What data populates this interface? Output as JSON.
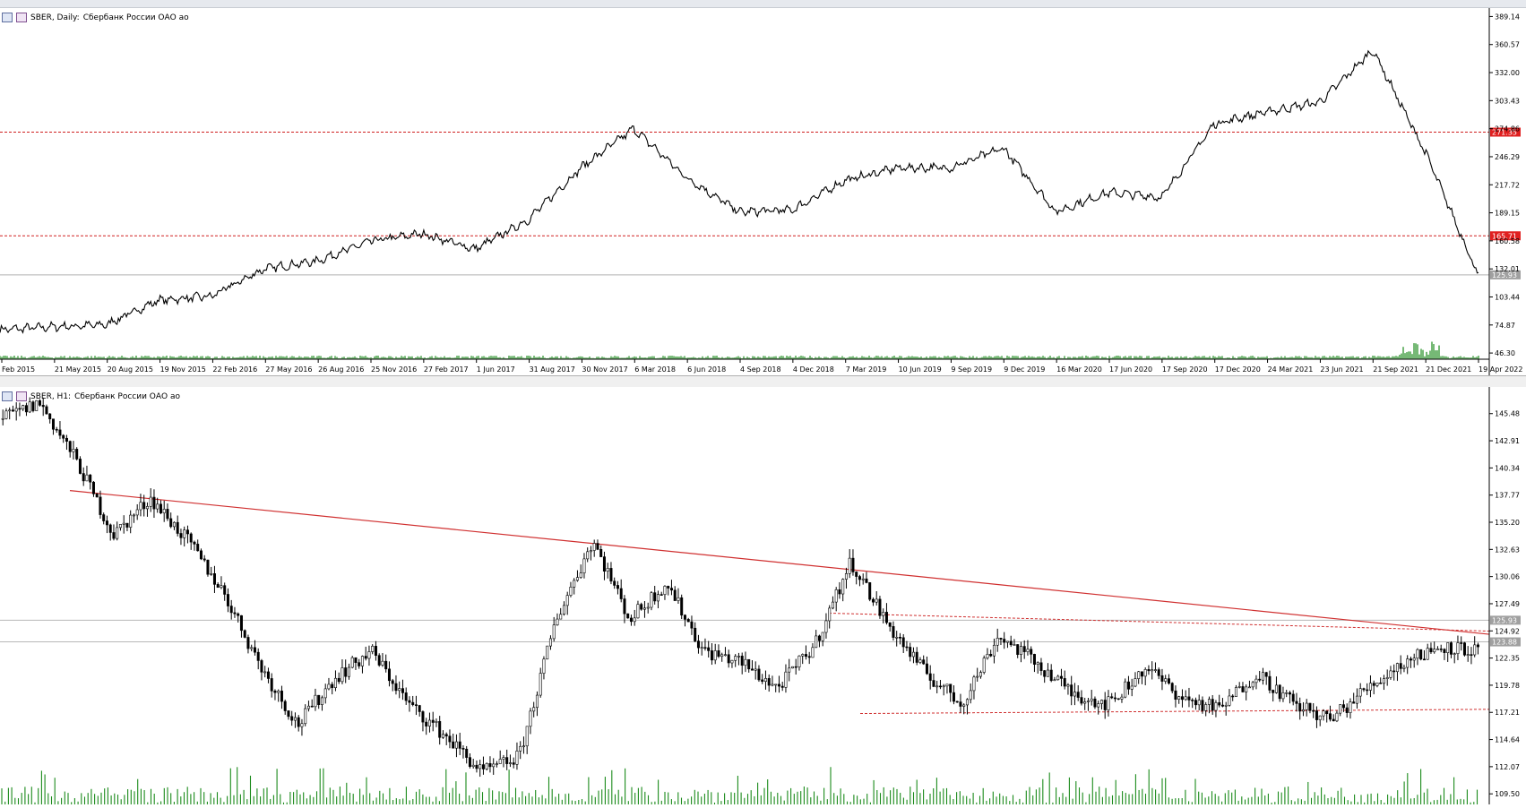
{
  "top_chart": {
    "header": {
      "symbol": "SBER, Daily:",
      "description": "Сбербанк России ОАО ао"
    },
    "price_axis": [
      "389.14",
      "360.57",
      "332.00",
      "303.43",
      "274.86",
      "246.29",
      "217.72",
      "189.15",
      "160.58",
      "132.01",
      "103.44",
      "74.87",
      "46.30"
    ],
    "time_axis": [
      "Feb 2015",
      "21 May 2015",
      "20 Aug 2015",
      "19 Nov 2015",
      "22 Feb 2016",
      "27 May 2016",
      "26 Aug 2016",
      "25 Nov 2016",
      "27 Feb 2017",
      "1 Jun 2017",
      "31 Aug 2017",
      "30 Nov 2017",
      "6 Mar 2018",
      "6 Jun 2018",
      "4 Sep 2018",
      "4 Dec 2018",
      "7 Mar 2019",
      "10 Jun 2019",
      "9 Sep 2019",
      "9 Dec 2019",
      "16 Mar 2020",
      "17 Jun 2020",
      "17 Sep 2020",
      "17 Dec 2020",
      "24 Mar 2021",
      "23 Jun 2021",
      "21 Sep 2021",
      "21 Dec 2021",
      "19 Apr 2022"
    ],
    "price_tags": [
      {
        "text": "271.35",
        "color": "#e02020"
      },
      {
        "text": "165.71",
        "color": "#e02020"
      },
      {
        "text": "125.93",
        "color": "#a0a0a0"
      }
    ]
  },
  "bottom_chart": {
    "header": {
      "symbol": "SBER, H1:",
      "description": "Сбербанк России ОАО ао"
    },
    "price_axis": [
      "145.48",
      "142.91",
      "140.34",
      "137.77",
      "135.20",
      "132.63",
      "130.06",
      "127.49",
      "124.92",
      "122.35",
      "119.78",
      "117.21",
      "114.64",
      "112.07",
      "109.50"
    ],
    "price_tags": [
      {
        "text": "125.93",
        "color": "#a0a0a0"
      },
      {
        "text": "123.88",
        "color": "#a0a0a0"
      }
    ]
  },
  "chart_data": [
    {
      "type": "line",
      "title": "SBER, Daily: Сбербанк России ОАО ао",
      "x": [
        "Feb 2015",
        "21 May 2015",
        "20 Aug 2015",
        "19 Nov 2015",
        "22 Feb 2016",
        "27 May 2016",
        "26 Aug 2016",
        "25 Nov 2016",
        "27 Feb 2017",
        "1 Jun 2017",
        "31 Aug 2017",
        "30 Nov 2017",
        "6 Mar 2018",
        "6 Jun 2018",
        "4 Sep 2018",
        "4 Dec 2018",
        "7 Mar 2019",
        "10 Jun 2019",
        "9 Sep 2019",
        "9 Dec 2019",
        "16 Mar 2020",
        "17 Jun 2020",
        "17 Sep 2020",
        "17 Dec 2020",
        "24 Mar 2021",
        "23 Jun 2021",
        "21 Sep 2021",
        "21 Dec 2021",
        "19 Apr 2022"
      ],
      "series": [
        {
          "values": [
            70,
            73,
            75,
            100,
            104,
            132,
            140,
            160,
            168,
            152,
            182,
            235,
            275,
            225,
            190,
            192,
            222,
            235,
            235,
            255,
            190,
            210,
            205,
            280,
            292,
            302,
            355,
            250,
            125
          ]
        }
      ],
      "horizontal_levels": [
        271.35,
        165.71,
        125.93
      ],
      "ylim": [
        40,
        395
      ]
    },
    {
      "type": "line",
      "title": "SBER, H1: Сбербанк России ОАО ао",
      "series": [
        {
          "values": [
            145.0,
            146.5,
            141.0,
            134.0,
            137.5,
            133.5,
            128.5,
            121.5,
            116.0,
            120.5,
            123.0,
            118.0,
            115.0,
            111.5,
            113.0,
            126.0,
            133.5,
            126.0,
            129.5,
            123.0,
            122.0,
            119.5,
            123.5,
            131.5,
            125.5,
            121.0,
            118.0,
            124.5,
            122.0,
            119.0,
            118.0,
            121.5,
            118.5,
            117.5,
            121.0,
            118.0,
            116.5,
            119.5,
            122.0,
            123.5,
            123.0
          ]
        }
      ],
      "trendline": {
        "start": 138.2,
        "end": 124.6
      },
      "ylim": [
        108.5,
        148.0
      ]
    }
  ]
}
